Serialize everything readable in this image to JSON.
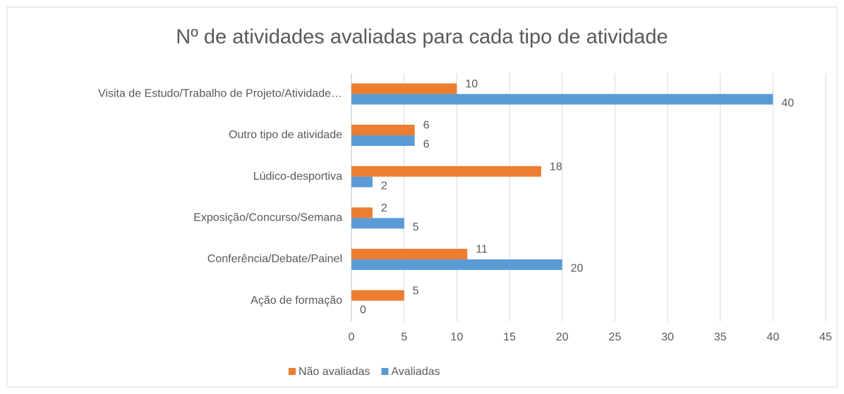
{
  "chart_data": {
    "type": "hbar",
    "title": "Nº de atividades avaliadas para cada tipo de atividade",
    "categories": [
      "Visita de Estudo/Trabalho de Projeto/Atividade…",
      "Outro tipo de atividade",
      "Lúdico-desportiva",
      "Exposição/Concurso/Semana",
      "Conferência/Debate/Painel",
      "Ação de formação"
    ],
    "series": [
      {
        "name": "Não avaliadas",
        "color": "#ed7d31",
        "values": [
          10,
          6,
          18,
          2,
          11,
          5
        ]
      },
      {
        "name": "Avaliadas",
        "color": "#5b9bd5",
        "values": [
          40,
          6,
          2,
          5,
          20,
          0
        ]
      }
    ],
    "xlim": [
      0,
      45
    ],
    "xticks": [
      0,
      5,
      10,
      15,
      20,
      25,
      30,
      35,
      40,
      45
    ],
    "grid": true,
    "legend": "bottom"
  }
}
